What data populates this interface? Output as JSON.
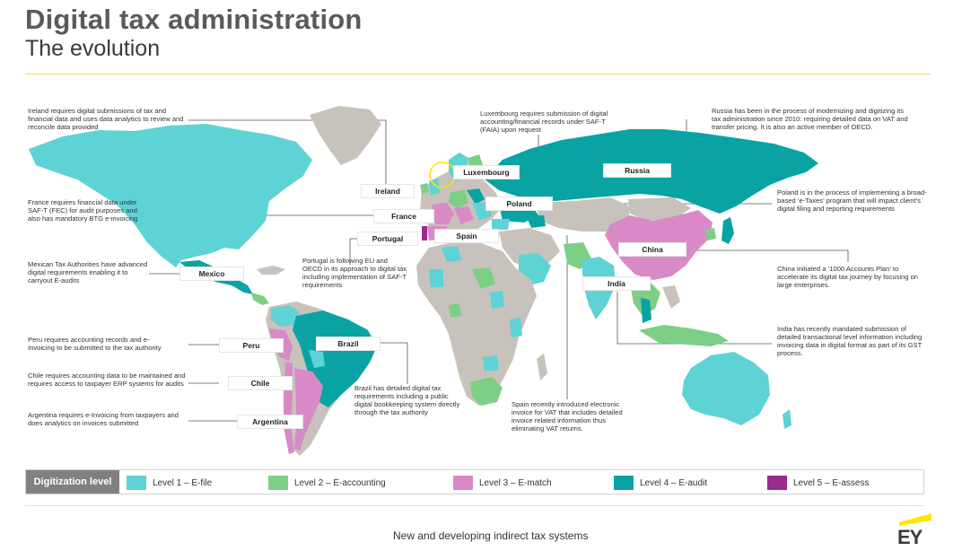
{
  "header": {
    "title": "Digital tax administration",
    "subtitle": "The evolution"
  },
  "colors": {
    "level1": "#5dd3d6",
    "level2": "#7ccf85",
    "level3": "#d98ac6",
    "level4": "#0aa3a3",
    "level5": "#9b2c8e",
    "other": "#c7c2bc",
    "accent": "#ffe600"
  },
  "notes": {
    "ireland": "Ireland requires digital submissions of tax and financial data and uses data analytics to review and reconcile data provided",
    "luxembourg": "Luxembourg requires submission of digital accounting/financial records under SAF-T (FAIA) upon request",
    "russia": "Russia has been in the process of modernizing and digitizing its tax administration since 2010: requiring detailed data on VAT and transfer pricing. It is also an active member of OECD.",
    "france": "France requires financial data under SAF-T (FEC) for audit purposes and also has mandatory BTG e-invoicing",
    "poland": "Poland is in the process of implementing a broad-based ‘e-Taxes’ program that will impact client’s digital filing and reporting requirements",
    "mexico": "Mexican Tax Authorities have advanced digital requirements enabling it to carryout E-audits",
    "portugal": "Portugal is following EU and OECD in its approach to digital tax including implementation of SAF-T requirements",
    "china": "China initiated a ‘1000 Accounts Plan’ to accelerate its digital tax journey by focusing on large enterprises.",
    "peru": "Peru requires accounting records and e-Invoicing to be submitted to the tax authority",
    "india": "India has recently mandated submission of detailed transactional level information including invoicing data in digital format as part of its GST process.",
    "chile": "Chile requires accounting data to be maintained and requires access to taxpayer ERP systems for audits",
    "brazil": "Brazil has detailed digital tax requirements including a public digital bookkeeping system directly through the tax authority",
    "spain": "Spain recently introduced electronic invoice for VAT that includes detailed invoice related information thus eliminating VAT returns.",
    "argentina": "Argentina requires e-Invoicing from taxpayers and does analytics on invoices submitted"
  },
  "countries": {
    "ireland": "Ireland",
    "luxembourg": "Luxembourg",
    "russia": "Russia",
    "poland": "Poland",
    "france": "France",
    "portugal": "Portugal",
    "spain": "Spain",
    "china": "China",
    "mexico": "Mexico",
    "india": "India",
    "peru": "Peru",
    "brazil": "Brazil",
    "chile": "Chile",
    "argentina": "Argentina"
  },
  "legend": {
    "heading": "Digitization level",
    "items": [
      {
        "label": "Level 1 – E-file",
        "color": "#5dd3d6"
      },
      {
        "label": "Level 2 – E-accounting",
        "color": "#7ccf85"
      },
      {
        "label": "Level 3 – E-match",
        "color": "#d98ac6"
      },
      {
        "label": "Level 4 – E-audit",
        "color": "#0aa3a3"
      },
      {
        "label": "Level 5 – E-assess",
        "color": "#9b2c8e"
      }
    ]
  },
  "footer": {
    "caption": "New and developing indirect tax systems",
    "logo": "EY"
  }
}
